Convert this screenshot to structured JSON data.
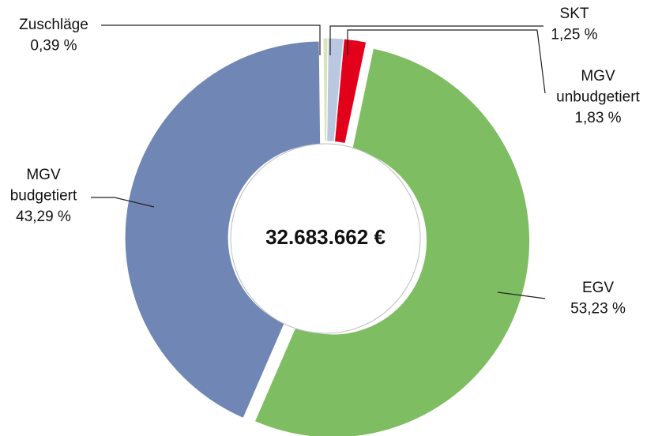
{
  "chart_data": {
    "type": "donut",
    "center_label": "32.683.662 €",
    "categories": [
      "Zuschläge",
      "SKT",
      "MGV unbudgetiert",
      "EGV",
      "MGV budgetiert"
    ],
    "values": [
      0.39,
      1.25,
      1.83,
      53.23,
      43.29
    ],
    "value_labels": [
      "0,39 %",
      "1,25 %",
      "1,83 %",
      "53,23 %",
      "43,29 %"
    ],
    "colors": [
      "#d8e4bc",
      "#b9c7e0",
      "#e3001b",
      "#7ebd62",
      "#7086b5"
    ]
  }
}
